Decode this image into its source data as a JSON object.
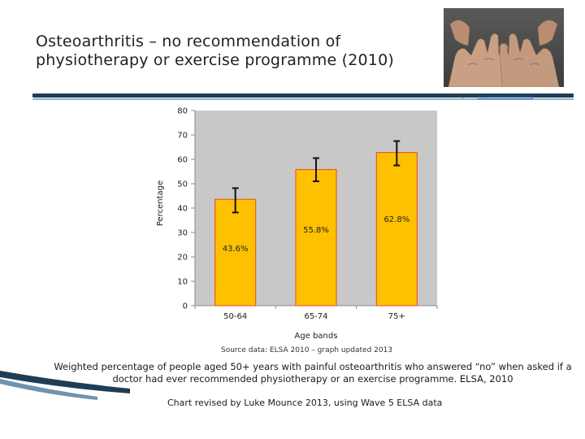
{
  "slide": {
    "title_line1": "Osteoarthritis – no recommendation of",
    "title_line2": "physiotherapy or exercise programme (2010)",
    "photo_icon": "arthritic-hands-photo",
    "image_credit_prefix": "Image from",
    "image_credit_link": "http://commons.wikimedia.org"
  },
  "chart_data": {
    "type": "bar",
    "categories": [
      "50-64",
      "65-74",
      "75+"
    ],
    "values": [
      43.6,
      55.8,
      62.8
    ],
    "data_labels": [
      "43.6%",
      "55.8%",
      "62.8%"
    ],
    "error_bars": [
      [
        38.2,
        48.2
      ],
      [
        51,
        60.5
      ],
      [
        57.5,
        67.5
      ]
    ],
    "xlabel": "Age bands",
    "ylabel": "Percentage",
    "ylim": [
      0,
      80
    ],
    "yticks": [
      0,
      10,
      20,
      30,
      40,
      50,
      60,
      70,
      80
    ],
    "grid": false,
    "legend": "none",
    "bar_color": "#FFC000",
    "bar_edge_color": "#E74C1C",
    "plot_bg": "#C8C8C8"
  },
  "notes": {
    "source": "Source data: ELSA 2010 – graph updated 2013",
    "footnote": "Weighted percentage of people aged 50+ years with painful osteoarthritis who answered “no” when asked if a doctor had ever recommended physiotherapy or an exercise programme. ELSA, 2010",
    "revised": "Chart revised by Luke Mounce 2013, using Wave 5 ELSA data"
  }
}
